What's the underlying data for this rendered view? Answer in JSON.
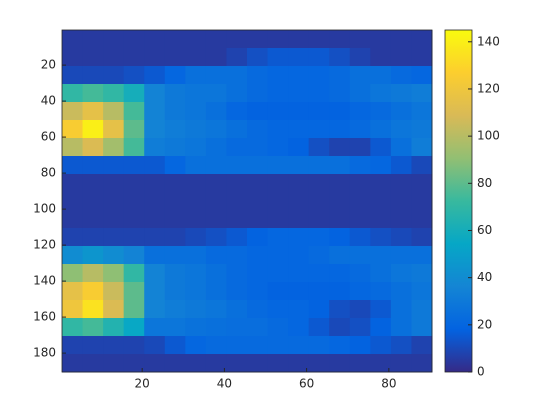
{
  "chart_data": {
    "type": "heatmap",
    "xlim": [
      0.5,
      90.5
    ],
    "ylim": [
      0.5,
      190.5
    ],
    "y_reversed": true,
    "xticks": [
      20,
      40,
      60,
      80
    ],
    "yticks": [
      20,
      40,
      60,
      80,
      100,
      120,
      140,
      160,
      180
    ],
    "clim": [
      0,
      145
    ],
    "cticks": [
      0,
      20,
      40,
      60,
      80,
      100,
      120,
      140
    ],
    "colormap": [
      "#352a87",
      "#0363e1",
      "#1485d4",
      "#06a7c6",
      "#38b99e",
      "#92bf73",
      "#d9ba56",
      "#fcce2e",
      "#f9fb0e"
    ],
    "z": [
      [
        5,
        5,
        5,
        5,
        5,
        5,
        5,
        5,
        5,
        5,
        5,
        5,
        5,
        5,
        5,
        5,
        5,
        5
      ],
      [
        5,
        5,
        5,
        5,
        5,
        5,
        5,
        5,
        8,
        12,
        15,
        15,
        15,
        12,
        8,
        5,
        5,
        5
      ],
      [
        10,
        10,
        10,
        12,
        15,
        20,
        25,
        25,
        25,
        22,
        20,
        20,
        20,
        22,
        25,
        25,
        22,
        20
      ],
      [
        70,
        75,
        70,
        60,
        35,
        30,
        28,
        28,
        25,
        22,
        20,
        20,
        20,
        22,
        25,
        28,
        30,
        32
      ],
      [
        105,
        115,
        100,
        75,
        35,
        30,
        28,
        25,
        20,
        18,
        18,
        18,
        18,
        18,
        20,
        22,
        25,
        28
      ],
      [
        125,
        140,
        115,
        80,
        35,
        32,
        30,
        28,
        25,
        22,
        20,
        20,
        20,
        20,
        22,
        25,
        28,
        30
      ],
      [
        100,
        110,
        95,
        75,
        32,
        30,
        28,
        25,
        22,
        22,
        20,
        18,
        12,
        8,
        8,
        15,
        25,
        32
      ],
      [
        15,
        15,
        15,
        15,
        15,
        20,
        25,
        25,
        25,
        25,
        25,
        25,
        25,
        25,
        22,
        20,
        15,
        10
      ],
      [
        5,
        5,
        5,
        5,
        5,
        5,
        5,
        5,
        5,
        5,
        5,
        5,
        5,
        5,
        5,
        5,
        5,
        5
      ],
      [
        5,
        5,
        5,
        5,
        5,
        5,
        5,
        5,
        5,
        5,
        5,
        5,
        5,
        5,
        5,
        5,
        5,
        5
      ],
      [
        5,
        5,
        5,
        5,
        5,
        5,
        5,
        5,
        5,
        5,
        5,
        5,
        5,
        5,
        5,
        5,
        5,
        5
      ],
      [
        8,
        8,
        8,
        8,
        8,
        8,
        10,
        12,
        15,
        18,
        20,
        20,
        20,
        18,
        15,
        12,
        10,
        8
      ],
      [
        40,
        45,
        40,
        35,
        25,
        25,
        25,
        22,
        22,
        20,
        20,
        20,
        22,
        25,
        25,
        25,
        25,
        25
      ],
      [
        90,
        100,
        90,
        70,
        35,
        30,
        28,
        25,
        22,
        20,
        20,
        20,
        20,
        20,
        22,
        25,
        28,
        30
      ],
      [
        115,
        125,
        105,
        80,
        35,
        30,
        28,
        25,
        22,
        20,
        18,
        18,
        18,
        18,
        20,
        22,
        25,
        28
      ],
      [
        120,
        135,
        110,
        80,
        35,
        32,
        30,
        28,
        25,
        22,
        20,
        20,
        18,
        12,
        10,
        15,
        25,
        30
      ],
      [
        70,
        75,
        65,
        55,
        28,
        28,
        26,
        25,
        24,
        24,
        22,
        20,
        15,
        10,
        12,
        18,
        25,
        30
      ],
      [
        8,
        8,
        8,
        8,
        10,
        15,
        20,
        22,
        22,
        22,
        22,
        22,
        22,
        20,
        18,
        15,
        12,
        8
      ],
      [
        5,
        5,
        5,
        5,
        5,
        5,
        5,
        5,
        5,
        5,
        5,
        5,
        5,
        5,
        5,
        5,
        5,
        5
      ]
    ]
  }
}
